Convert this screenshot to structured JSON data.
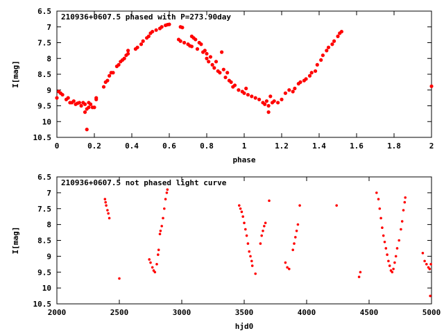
{
  "chart_data": [
    {
      "type": "scatter",
      "title": "210936+0607.5 phased with P=273.90day",
      "xlabel": "phase",
      "ylabel": "I[mag]",
      "xlim": [
        0,
        2
      ],
      "ylim": [
        10.5,
        6.5
      ],
      "y_inverted": true,
      "xticks": [
        "0",
        "0.2",
        "0.4",
        "0.6",
        "0.8",
        "1",
        "1.2",
        "1.4",
        "1.6",
        "1.8",
        "2"
      ],
      "yticks": [
        "6.5",
        "7",
        "7.5",
        "8",
        "8.5",
        "9",
        "9.5",
        "10",
        "10.5"
      ],
      "marker_color": "#ff0000",
      "series": [
        {
          "points": [
            [
              0.0,
              9.25
            ],
            [
              0.01,
              9.05
            ],
            [
              0.02,
              9.1
            ],
            [
              0.03,
              9.15
            ],
            [
              0.05,
              9.3
            ],
            [
              0.06,
              9.25
            ],
            [
              0.07,
              9.4
            ],
            [
              0.08,
              9.4
            ],
            [
              0.09,
              9.35
            ],
            [
              0.1,
              9.45
            ],
            [
              0.11,
              9.42
            ],
            [
              0.12,
              9.4
            ],
            [
              0.13,
              9.5
            ],
            [
              0.14,
              9.4
            ],
            [
              0.15,
              9.45
            ],
            [
              0.15,
              9.7
            ],
            [
              0.16,
              9.6
            ],
            [
              0.16,
              10.25
            ],
            [
              0.17,
              9.55
            ],
            [
              0.17,
              9.4
            ],
            [
              0.18,
              9.45
            ],
            [
              0.19,
              9.55
            ],
            [
              0.2,
              9.55
            ],
            [
              0.21,
              9.3
            ],
            [
              0.21,
              9.25
            ],
            [
              0.25,
              8.9
            ],
            [
              0.26,
              8.75
            ],
            [
              0.27,
              8.7
            ],
            [
              0.28,
              8.55
            ],
            [
              0.29,
              8.45
            ],
            [
              0.3,
              8.45
            ],
            [
              0.32,
              8.25
            ],
            [
              0.33,
              8.2
            ],
            [
              0.34,
              8.1
            ],
            [
              0.35,
              8.05
            ],
            [
              0.36,
              8.0
            ],
            [
              0.37,
              7.9
            ],
            [
              0.38,
              7.85
            ],
            [
              0.38,
              7.75
            ],
            [
              0.42,
              7.7
            ],
            [
              0.43,
              7.65
            ],
            [
              0.45,
              7.55
            ],
            [
              0.46,
              7.45
            ],
            [
              0.48,
              7.35
            ],
            [
              0.49,
              7.3
            ],
            [
              0.5,
              7.2
            ],
            [
              0.51,
              7.15
            ],
            [
              0.53,
              7.1
            ],
            [
              0.55,
              7.05
            ],
            [
              0.56,
              7.0
            ],
            [
              0.58,
              6.95
            ],
            [
              0.59,
              6.93
            ],
            [
              0.6,
              6.92
            ],
            [
              0.66,
              7.0
            ],
            [
              0.67,
              7.02
            ],
            [
              0.65,
              7.4
            ],
            [
              0.66,
              7.45
            ],
            [
              0.68,
              7.5
            ],
            [
              0.7,
              7.55
            ],
            [
              0.71,
              7.6
            ],
            [
              0.72,
              7.62
            ],
            [
              0.72,
              7.3
            ],
            [
              0.73,
              7.35
            ],
            [
              0.74,
              7.4
            ],
            [
              0.75,
              7.7
            ],
            [
              0.76,
              7.5
            ],
            [
              0.77,
              7.55
            ],
            [
              0.78,
              7.8
            ],
            [
              0.79,
              7.75
            ],
            [
              0.8,
              8.0
            ],
            [
              0.8,
              7.85
            ],
            [
              0.81,
              8.1
            ],
            [
              0.82,
              7.95
            ],
            [
              0.83,
              8.2
            ],
            [
              0.84,
              8.3
            ],
            [
              0.85,
              8.1
            ],
            [
              0.86,
              8.4
            ],
            [
              0.87,
              8.45
            ],
            [
              0.88,
              7.8
            ],
            [
              0.89,
              8.35
            ],
            [
              0.9,
              8.6
            ],
            [
              0.91,
              8.45
            ],
            [
              0.92,
              8.7
            ],
            [
              0.93,
              8.75
            ],
            [
              0.94,
              8.9
            ],
            [
              0.95,
              8.85
            ],
            [
              0.97,
              9.0
            ],
            [
              0.99,
              9.05
            ],
            [
              1.0,
              9.1
            ],
            [
              1.01,
              8.95
            ],
            [
              1.02,
              9.15
            ],
            [
              1.04,
              9.2
            ],
            [
              1.06,
              9.25
            ],
            [
              1.08,
              9.3
            ],
            [
              1.1,
              9.4
            ],
            [
              1.11,
              9.45
            ],
            [
              1.12,
              9.35
            ],
            [
              1.13,
              9.5
            ],
            [
              1.13,
              9.7
            ],
            [
              1.14,
              9.2
            ],
            [
              1.15,
              9.4
            ],
            [
              1.16,
              9.35
            ],
            [
              1.18,
              9.4
            ],
            [
              1.2,
              9.3
            ],
            [
              1.22,
              9.1
            ],
            [
              1.24,
              9.0
            ],
            [
              1.26,
              9.05
            ],
            [
              1.27,
              8.95
            ],
            [
              1.29,
              8.8
            ],
            [
              1.3,
              8.75
            ],
            [
              1.32,
              8.7
            ],
            [
              1.33,
              8.65
            ],
            [
              1.35,
              8.55
            ],
            [
              1.36,
              8.45
            ],
            [
              1.38,
              8.4
            ],
            [
              1.39,
              8.2
            ],
            [
              1.41,
              8.05
            ],
            [
              1.42,
              7.9
            ],
            [
              1.44,
              7.75
            ],
            [
              1.45,
              7.65
            ],
            [
              1.47,
              7.55
            ],
            [
              1.48,
              7.45
            ],
            [
              1.5,
              7.3
            ],
            [
              1.51,
              7.2
            ],
            [
              1.52,
              7.15
            ],
            [
              2.0,
              8.88
            ]
          ]
        }
      ]
    },
    {
      "type": "scatter",
      "title": "210936+0607.5 not phased light curve",
      "xlabel": "hjd0",
      "ylabel": "I[mag]",
      "xlim": [
        2000,
        5000
      ],
      "ylim": [
        10.5,
        6.5
      ],
      "y_inverted": true,
      "xticks": [
        "2000",
        "2500",
        "3000",
        "3500",
        "4000",
        "4500",
        "5000"
      ],
      "yticks": [
        "6.5",
        "7",
        "7.5",
        "8",
        "8.5",
        "9",
        "9.5",
        "10",
        "10.5"
      ],
      "marker_color": "#ff0000",
      "series": [
        {
          "points": [
            [
              2385,
              7.2
            ],
            [
              2390,
              7.3
            ],
            [
              2395,
              7.4
            ],
            [
              2405,
              7.55
            ],
            [
              2412,
              7.65
            ],
            [
              2420,
              7.8
            ],
            [
              2500,
              9.7
            ],
            [
              2740,
              9.1
            ],
            [
              2750,
              9.2
            ],
            [
              2765,
              9.35
            ],
            [
              2775,
              9.45
            ],
            [
              2785,
              9.5
            ],
            [
              2800,
              9.25
            ],
            [
              2810,
              8.95
            ],
            [
              2815,
              8.8
            ],
            [
              2825,
              8.3
            ],
            [
              2830,
              8.2
            ],
            [
              2840,
              8.05
            ],
            [
              2850,
              7.8
            ],
            [
              2860,
              7.5
            ],
            [
              2870,
              7.2
            ],
            [
              2880,
              7.0
            ],
            [
              2885,
              6.9
            ],
            [
              3460,
              7.4
            ],
            [
              3470,
              7.5
            ],
            [
              3480,
              7.6
            ],
            [
              3490,
              7.75
            ],
            [
              3500,
              7.95
            ],
            [
              3510,
              8.15
            ],
            [
              3520,
              8.35
            ],
            [
              3530,
              8.6
            ],
            [
              3540,
              8.85
            ],
            [
              3550,
              9.0
            ],
            [
              3560,
              9.15
            ],
            [
              3565,
              9.3
            ],
            [
              3590,
              9.55
            ],
            [
              3630,
              8.6
            ],
            [
              3640,
              8.35
            ],
            [
              3650,
              8.2
            ],
            [
              3660,
              8.05
            ],
            [
              3670,
              7.95
            ],
            [
              3700,
              7.25
            ],
            [
              3830,
              9.2
            ],
            [
              3845,
              9.35
            ],
            [
              3860,
              9.4
            ],
            [
              3890,
              8.8
            ],
            [
              3900,
              8.6
            ],
            [
              3910,
              8.4
            ],
            [
              3920,
              8.2
            ],
            [
              3930,
              8.0
            ],
            [
              3945,
              7.4
            ],
            [
              4240,
              7.4
            ],
            [
              4420,
              9.65
            ],
            [
              4430,
              9.5
            ],
            [
              4560,
              7.0
            ],
            [
              4575,
              7.2
            ],
            [
              4585,
              7.5
            ],
            [
              4595,
              7.8
            ],
            [
              4605,
              8.1
            ],
            [
              4615,
              8.35
            ],
            [
              4625,
              8.55
            ],
            [
              4635,
              8.75
            ],
            [
              4645,
              8.95
            ],
            [
              4655,
              9.15
            ],
            [
              4665,
              9.3
            ],
            [
              4675,
              9.45
            ],
            [
              4685,
              9.5
            ],
            [
              4695,
              9.4
            ],
            [
              4705,
              9.2
            ],
            [
              4715,
              9.0
            ],
            [
              4725,
              8.75
            ],
            [
              4740,
              8.5
            ],
            [
              4755,
              8.15
            ],
            [
              4765,
              7.9
            ],
            [
              4775,
              7.55
            ],
            [
              4785,
              7.3
            ],
            [
              4790,
              7.15
            ],
            [
              4930,
              8.9
            ],
            [
              4945,
              9.15
            ],
            [
              4960,
              9.25
            ],
            [
              4975,
              9.35
            ],
            [
              4985,
              9.4
            ],
            [
              4995,
              9.25
            ],
            [
              4990,
              10.25
            ]
          ]
        }
      ]
    }
  ]
}
